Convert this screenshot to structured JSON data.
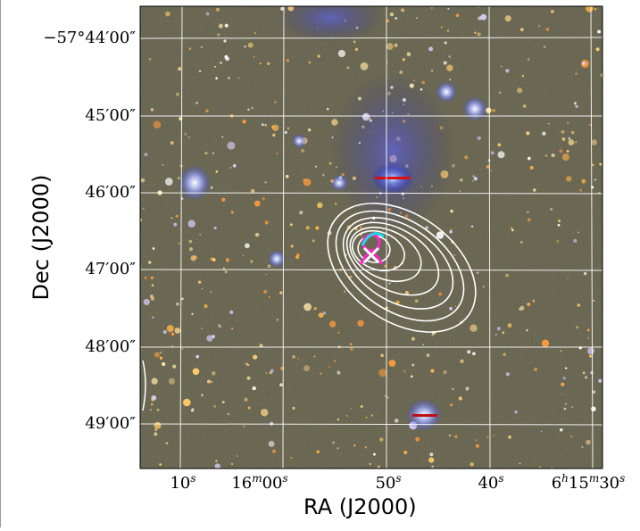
{
  "figure": {
    "xlabel": "RA (J2000)",
    "ylabel": "Dec (J2000)",
    "ra_ticks": [
      {
        "label": "10",
        "unit": "s"
      },
      {
        "label": "16",
        "unit": "m",
        "extra": "00",
        "unit2": "s"
      },
      {
        "label": "50",
        "unit": "s"
      },
      {
        "label": "40",
        "unit": "s"
      },
      {
        "label": "6",
        "unit": "h",
        "extra": "15",
        "unit2": "m",
        "extra2": "30",
        "unit3": "s"
      }
    ],
    "dec_ticks": [
      "−57°44′00″",
      "45′00″",
      "46′00″",
      "47′00″",
      "48′00″",
      "49′00″"
    ],
    "colors": {
      "sky_background": "#3a3a1c",
      "grid": "#ffffff",
      "contour": "#ffffff",
      "marker_magenta": "#ff22cc",
      "marker_cyan": "#22d6e6",
      "diffuse_glow": "#3a46ff"
    }
  }
}
